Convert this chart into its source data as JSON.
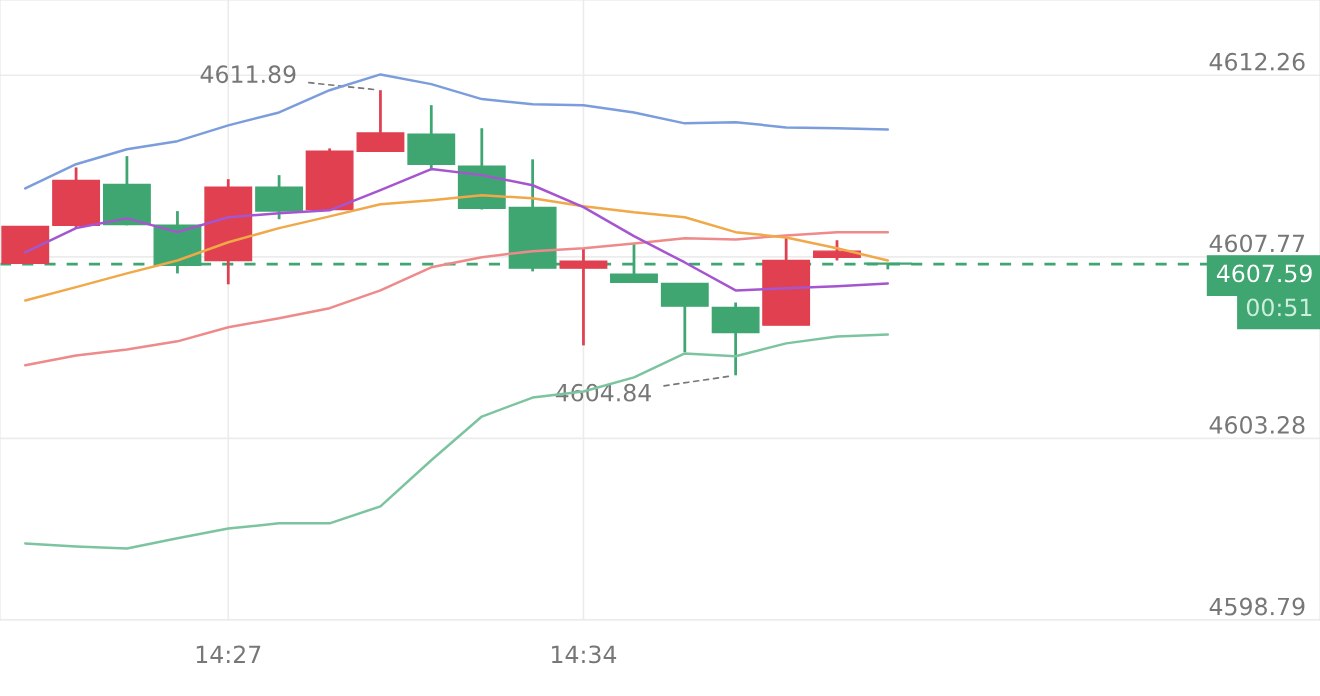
{
  "chart_data": {
    "type": "candlestick",
    "x": [
      14.3833,
      14.4,
      14.4167,
      14.4333,
      14.45,
      14.4667,
      14.4833,
      14.5,
      14.5167,
      14.5333,
      14.55,
      14.5667,
      14.5833,
      14.6,
      14.6167,
      14.6333,
      14.65,
      14.6667
    ],
    "ohlc": [
      [
        4607.61,
        4608.52,
        4607.61,
        4608.52
      ],
      [
        4608.55,
        4609.98,
        4608.48,
        4609.66
      ],
      [
        4609.56,
        4610.26,
        4608.55,
        4608.57
      ],
      [
        4608.55,
        4608.9,
        4607.36,
        4607.56
      ],
      [
        4607.68,
        4609.69,
        4607.09,
        4609.49
      ],
      [
        4609.49,
        4609.79,
        4608.7,
        4608.9
      ],
      [
        4608.94,
        4610.45,
        4608.94,
        4610.38
      ],
      [
        4610.38,
        4611.89,
        4610.38,
        4610.83
      ],
      [
        4610.8,
        4611.52,
        4609.91,
        4610.06
      ],
      [
        4610.01,
        4610.95,
        4608.94,
        4608.97
      ],
      [
        4608.99,
        4610.18,
        4607.41,
        4607.49
      ],
      [
        4607.49,
        4607.98,
        4605.58,
        4607.66
      ],
      [
        4607.34,
        4608.08,
        4607.14,
        4607.14
      ],
      [
        4607.11,
        4607.11,
        4605.41,
        4606.55
      ],
      [
        4606.52,
        4606.64,
        4604.84,
        4605.9
      ],
      [
        4606.08,
        4608.25,
        4606.08,
        4607.68
      ],
      [
        4607.76,
        4608.18,
        4607.68,
        4607.91
      ],
      [
        4607.61,
        4607.61,
        4607.46,
        4607.59
      ]
    ],
    "colors": [
      "#e0404f",
      "#e0404f",
      "#3fa672",
      "#3fa672",
      "#e0404f",
      "#3fa672",
      "#e0404f",
      "#e0404f",
      "#3fa672",
      "#3fa672",
      "#3fa672",
      "#e0404f",
      "#3fa672",
      "#3fa672",
      "#3fa672",
      "#e0404f",
      "#e0404f",
      "#3fa672"
    ],
    "series": [
      {
        "type": "line",
        "color": "#7b9ddb",
        "values": [
          4609.46,
          4610.06,
          4610.43,
          4610.63,
          4611.02,
          4611.34,
          4611.89,
          4612.28,
          4612.04,
          4611.67,
          4611.54,
          4611.52,
          4611.34,
          4611.07,
          4611.1,
          4610.97,
          4610.95,
          4610.92
        ]
      },
      {
        "type": "line",
        "color": "#7cc4a0",
        "values": [
          4600.68,
          4600.61,
          4600.56,
          4600.81,
          4601.05,
          4601.18,
          4601.18,
          4601.6,
          4602.74,
          4603.82,
          4604.29,
          4604.44,
          4604.79,
          4605.38,
          4605.31,
          4605.63,
          4605.8,
          4605.85
        ]
      },
      {
        "type": "line",
        "color": "#ee8a8a",
        "values": [
          4605.09,
          4605.33,
          4605.48,
          4605.68,
          4606.03,
          4606.25,
          4606.5,
          4606.94,
          4607.51,
          4607.76,
          4607.91,
          4607.98,
          4608.1,
          4608.23,
          4608.2,
          4608.3,
          4608.38,
          4608.38
        ]
      },
      {
        "type": "line",
        "color": "#f0a848",
        "values": [
          4606.69,
          4607.02,
          4607.36,
          4607.68,
          4608.13,
          4608.48,
          4608.77,
          4609.07,
          4609.17,
          4609.29,
          4609.22,
          4609.02,
          4608.87,
          4608.75,
          4608.38,
          4608.25,
          4607.98,
          4607.68
        ]
      },
      {
        "type": "line",
        "color": "#a555d0",
        "values": [
          4607.88,
          4608.48,
          4608.72,
          4608.38,
          4608.75,
          4608.85,
          4608.92,
          4609.42,
          4609.94,
          4609.79,
          4609.54,
          4609.0,
          4608.28,
          4607.63,
          4606.94,
          4606.99,
          4607.04,
          4607.11
        ]
      }
    ],
    "xlim": [
      14.375,
      14.8087
    ],
    "xticks": [
      {
        "value": 14.45,
        "label": "14:27"
      },
      {
        "value": 14.5667,
        "label": "14:34"
      }
    ],
    "ylim": [
      4598.79,
      4614.12
    ],
    "yticks": [
      4598.79,
      4603.28,
      4607.77,
      4612.26
    ],
    "grid": true,
    "ref_lines": [
      {
        "axis": "y",
        "value": 4607.59,
        "label": "4607.59",
        "color": "#3fa672",
        "line_style": "dashed"
      }
    ],
    "annotations": [
      {
        "text": "4611.89",
        "x": 14.5,
        "y": 4611.89
      },
      {
        "text": "4604.84",
        "x": 14.6167,
        "y": 4604.84
      },
      "00:51"
    ]
  }
}
